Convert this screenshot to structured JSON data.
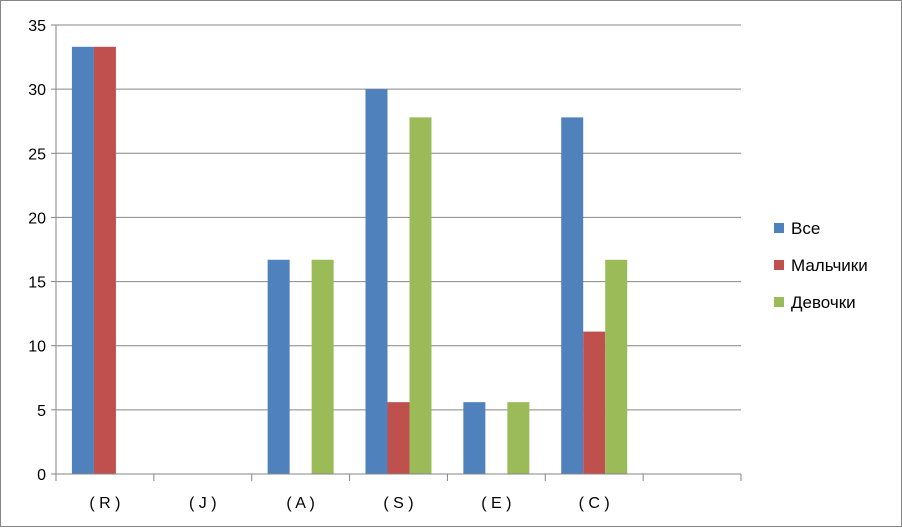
{
  "chart_data": {
    "type": "bar",
    "categories": [
      "( R )",
      "( J )",
      "( A )",
      "( S )",
      "( E )",
      "( C )",
      ""
    ],
    "series": [
      {
        "name": "Все",
        "color": "#4F81BD",
        "values": [
          33.3,
          0,
          16.7,
          30.0,
          5.6,
          27.8,
          0
        ]
      },
      {
        "name": "Мальчики",
        "color": "#C0504D",
        "values": [
          33.3,
          0,
          0,
          5.6,
          0,
          11.1,
          0
        ]
      },
      {
        "name": "Девочки",
        "color": "#9BBB59",
        "values": [
          0,
          0,
          16.7,
          27.8,
          5.6,
          16.7,
          0
        ]
      }
    ],
    "ylim": [
      0,
      35
    ],
    "yticks": [
      0,
      5,
      10,
      15,
      20,
      25,
      30,
      35
    ],
    "grid": true,
    "legend": "right",
    "title": "",
    "xlabel": "",
    "ylabel": ""
  }
}
